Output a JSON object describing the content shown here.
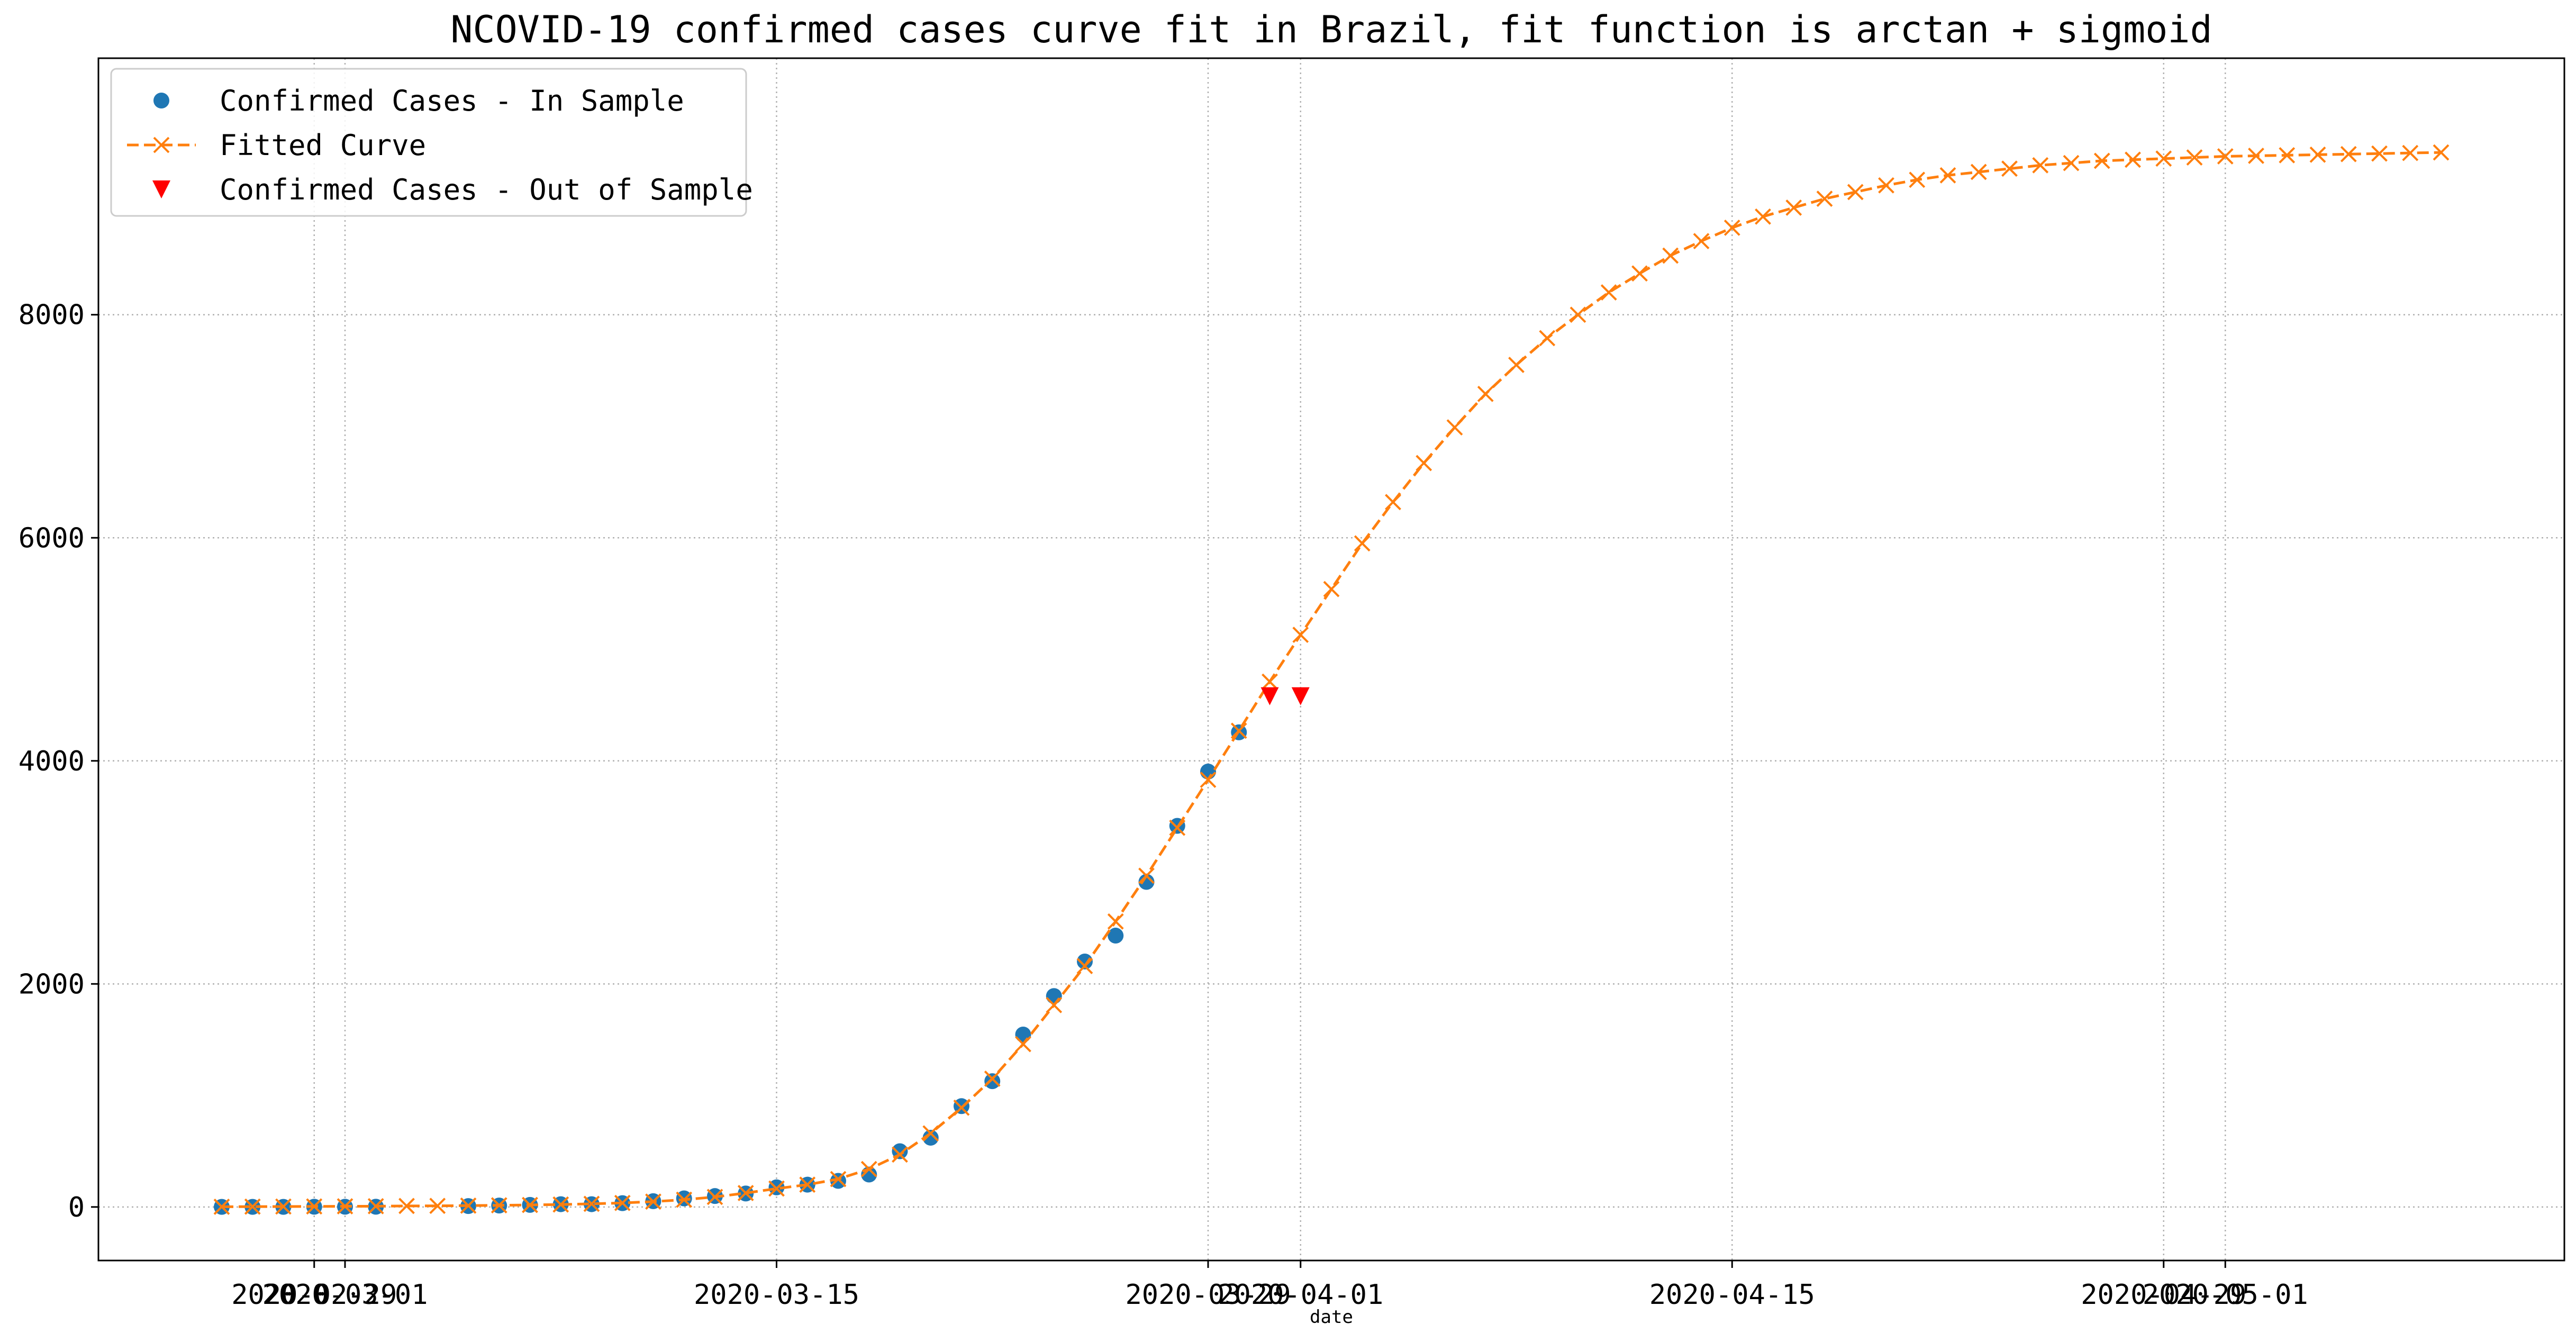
{
  "chart_data": {
    "type": "line",
    "title": "NCOVID-19 confirmed cases curve fit in Brazil, fit function is arctan + sigmoid",
    "xlabel": "date",
    "ylabel": "",
    "x_range": [
      "2020-02-22",
      "2020-05-12"
    ],
    "ylim": [
      -480,
      10300
    ],
    "grid": true,
    "legend_position": "upper-left",
    "x_ticks": [
      {
        "date": "2020-02-29",
        "label": "2020-02-29"
      },
      {
        "date": "2020-03-01",
        "label": "2020-03-01"
      },
      {
        "date": "2020-03-15",
        "label": "2020-03-15"
      },
      {
        "date": "2020-03-29",
        "label": "2020-03-29"
      },
      {
        "date": "2020-04-01",
        "label": "2020-04-01"
      },
      {
        "date": "2020-04-15",
        "label": "2020-04-15"
      },
      {
        "date": "2020-04-29",
        "label": "2020-04-29"
      },
      {
        "date": "2020-05-01",
        "label": "2020-05-01"
      }
    ],
    "y_ticks": [
      0,
      2000,
      4000,
      6000,
      8000
    ],
    "series": [
      {
        "name": "Confirmed Cases - In Sample",
        "marker": "circle",
        "color": "#1f77b4",
        "points": [
          [
            "2020-02-26",
            1
          ],
          [
            "2020-02-27",
            1
          ],
          [
            "2020-02-28",
            1
          ],
          [
            "2020-02-29",
            2
          ],
          [
            "2020-03-01",
            2
          ],
          [
            "2020-03-02",
            2
          ],
          [
            "2020-03-05",
            8
          ],
          [
            "2020-03-06",
            13
          ],
          [
            "2020-03-07",
            19
          ],
          [
            "2020-03-08",
            25
          ],
          [
            "2020-03-09",
            25
          ],
          [
            "2020-03-10",
            34
          ],
          [
            "2020-03-11",
            52
          ],
          [
            "2020-03-12",
            77
          ],
          [
            "2020-03-13",
            98
          ],
          [
            "2020-03-14",
            121
          ],
          [
            "2020-03-15",
            176
          ],
          [
            "2020-03-16",
            200
          ],
          [
            "2020-03-17",
            234
          ],
          [
            "2020-03-18",
            291
          ],
          [
            "2020-03-19",
            500
          ],
          [
            "2020-03-20",
            621
          ],
          [
            "2020-03-21",
            904
          ],
          [
            "2020-03-22",
            1128
          ],
          [
            "2020-03-23",
            1546
          ],
          [
            "2020-03-24",
            1891
          ],
          [
            "2020-03-25",
            2201
          ],
          [
            "2020-03-26",
            2433
          ],
          [
            "2020-03-27",
            2915
          ],
          [
            "2020-03-28",
            3417
          ],
          [
            "2020-03-29",
            3904
          ],
          [
            "2020-03-30",
            4256
          ]
        ]
      },
      {
        "name": "Fitted Curve",
        "marker": "x",
        "linestyle": "dashed",
        "color": "#ff7f0e",
        "points": [
          [
            "2020-02-26",
            2
          ],
          [
            "2020-02-27",
            3
          ],
          [
            "2020-02-28",
            4
          ],
          [
            "2020-02-29",
            5
          ],
          [
            "2020-03-01",
            6
          ],
          [
            "2020-03-02",
            7
          ],
          [
            "2020-03-03",
            9
          ],
          [
            "2020-03-04",
            10
          ],
          [
            "2020-03-05",
            12
          ],
          [
            "2020-03-06",
            15
          ],
          [
            "2020-03-07",
            18
          ],
          [
            "2020-03-08",
            22
          ],
          [
            "2020-03-09",
            28
          ],
          [
            "2020-03-10",
            36
          ],
          [
            "2020-03-11",
            48
          ],
          [
            "2020-03-12",
            65
          ],
          [
            "2020-03-13",
            90
          ],
          [
            "2020-03-14",
            125
          ],
          [
            "2020-03-15",
            165
          ],
          [
            "2020-03-16",
            200
          ],
          [
            "2020-03-17",
            250
          ],
          [
            "2020-03-18",
            340
          ],
          [
            "2020-03-19",
            470
          ],
          [
            "2020-03-20",
            660
          ],
          [
            "2020-03-21",
            890
          ],
          [
            "2020-03-22",
            1150
          ],
          [
            "2020-03-23",
            1460
          ],
          [
            "2020-03-24",
            1810
          ],
          [
            "2020-03-25",
            2160
          ],
          [
            "2020-03-26",
            2560
          ],
          [
            "2020-03-27",
            2970
          ],
          [
            "2020-03-28",
            3400
          ],
          [
            "2020-03-29",
            3830
          ],
          [
            "2020-03-30",
            4270
          ],
          [
            "2020-03-31",
            4710
          ],
          [
            "2020-04-01",
            5130
          ],
          [
            "2020-04-02",
            5540
          ],
          [
            "2020-04-03",
            5950
          ],
          [
            "2020-04-04",
            6320
          ],
          [
            "2020-04-05",
            6670
          ],
          [
            "2020-04-06",
            6990
          ],
          [
            "2020-04-07",
            7290
          ],
          [
            "2020-04-08",
            7550
          ],
          [
            "2020-04-09",
            7790
          ],
          [
            "2020-04-10",
            8000
          ],
          [
            "2020-04-11",
            8200
          ],
          [
            "2020-04-12",
            8370
          ],
          [
            "2020-04-13",
            8530
          ],
          [
            "2020-04-14",
            8660
          ],
          [
            "2020-04-15",
            8780
          ],
          [
            "2020-04-16",
            8880
          ],
          [
            "2020-04-17",
            8960
          ],
          [
            "2020-04-18",
            9040
          ],
          [
            "2020-04-19",
            9100
          ],
          [
            "2020-04-20",
            9160
          ],
          [
            "2020-04-21",
            9210
          ],
          [
            "2020-04-22",
            9250
          ],
          [
            "2020-04-23",
            9280
          ],
          [
            "2020-04-24",
            9310
          ],
          [
            "2020-04-25",
            9340
          ],
          [
            "2020-04-26",
            9360
          ],
          [
            "2020-04-27",
            9380
          ],
          [
            "2020-04-28",
            9390
          ],
          [
            "2020-04-29",
            9400
          ],
          [
            "2020-04-30",
            9410
          ],
          [
            "2020-05-01",
            9420
          ],
          [
            "2020-05-02",
            9425
          ],
          [
            "2020-05-03",
            9430
          ],
          [
            "2020-05-04",
            9435
          ],
          [
            "2020-05-05",
            9440
          ],
          [
            "2020-05-06",
            9445
          ],
          [
            "2020-05-07",
            9450
          ],
          [
            "2020-05-08",
            9455
          ]
        ]
      },
      {
        "name": "Confirmed Cases - Out of Sample",
        "marker": "triangle-down",
        "color": "#ff0000",
        "points": [
          [
            "2020-03-31",
            4579
          ],
          [
            "2020-04-01",
            4579
          ]
        ]
      }
    ]
  }
}
